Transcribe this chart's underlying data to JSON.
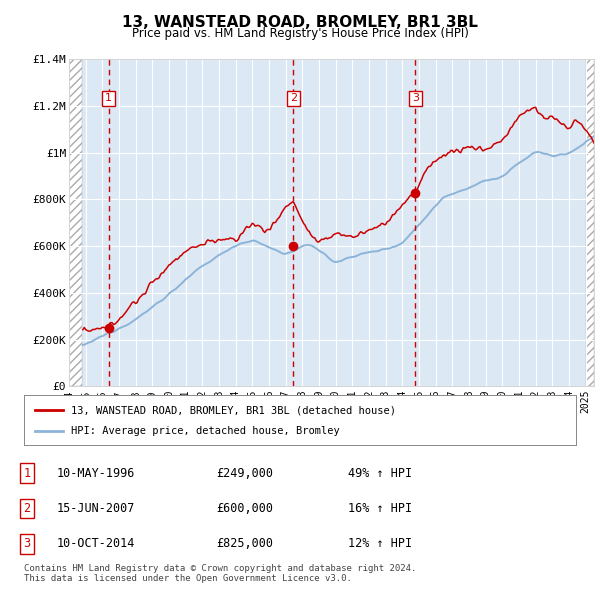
{
  "title": "13, WANSTEAD ROAD, BROMLEY, BR1 3BL",
  "subtitle": "Price paid vs. HM Land Registry's House Price Index (HPI)",
  "ylim": [
    0,
    1400000
  ],
  "yticks": [
    0,
    200000,
    400000,
    600000,
    800000,
    1000000,
    1200000,
    1400000
  ],
  "ytick_labels": [
    "£0",
    "£200K",
    "£400K",
    "£600K",
    "£800K",
    "£1M",
    "£1.2M",
    "£1.4M"
  ],
  "hpi_color": "#8db4d8",
  "price_color": "#cc0000",
  "bg_color": "#dce9f5",
  "xlim_start": 1994.0,
  "xlim_end": 2025.5,
  "transaction_year_nums": [
    1996.37,
    2007.46,
    2014.78
  ],
  "transaction_prices": [
    249000,
    600000,
    825000
  ],
  "transaction_labels": [
    "1",
    "2",
    "3"
  ],
  "legend_label_price": "13, WANSTEAD ROAD, BROMLEY, BR1 3BL (detached house)",
  "legend_label_hpi": "HPI: Average price, detached house, Bromley",
  "table_rows": [
    [
      "1",
      "10-MAY-1996",
      "£249,000",
      "49% ↑ HPI"
    ],
    [
      "2",
      "15-JUN-2007",
      "£600,000",
      "16% ↑ HPI"
    ],
    [
      "3",
      "10-OCT-2014",
      "£825,000",
      "12% ↑ HPI"
    ]
  ],
  "footnote": "Contains HM Land Registry data © Crown copyright and database right 2024.\nThis data is licensed under the Open Government Licence v3.0."
}
